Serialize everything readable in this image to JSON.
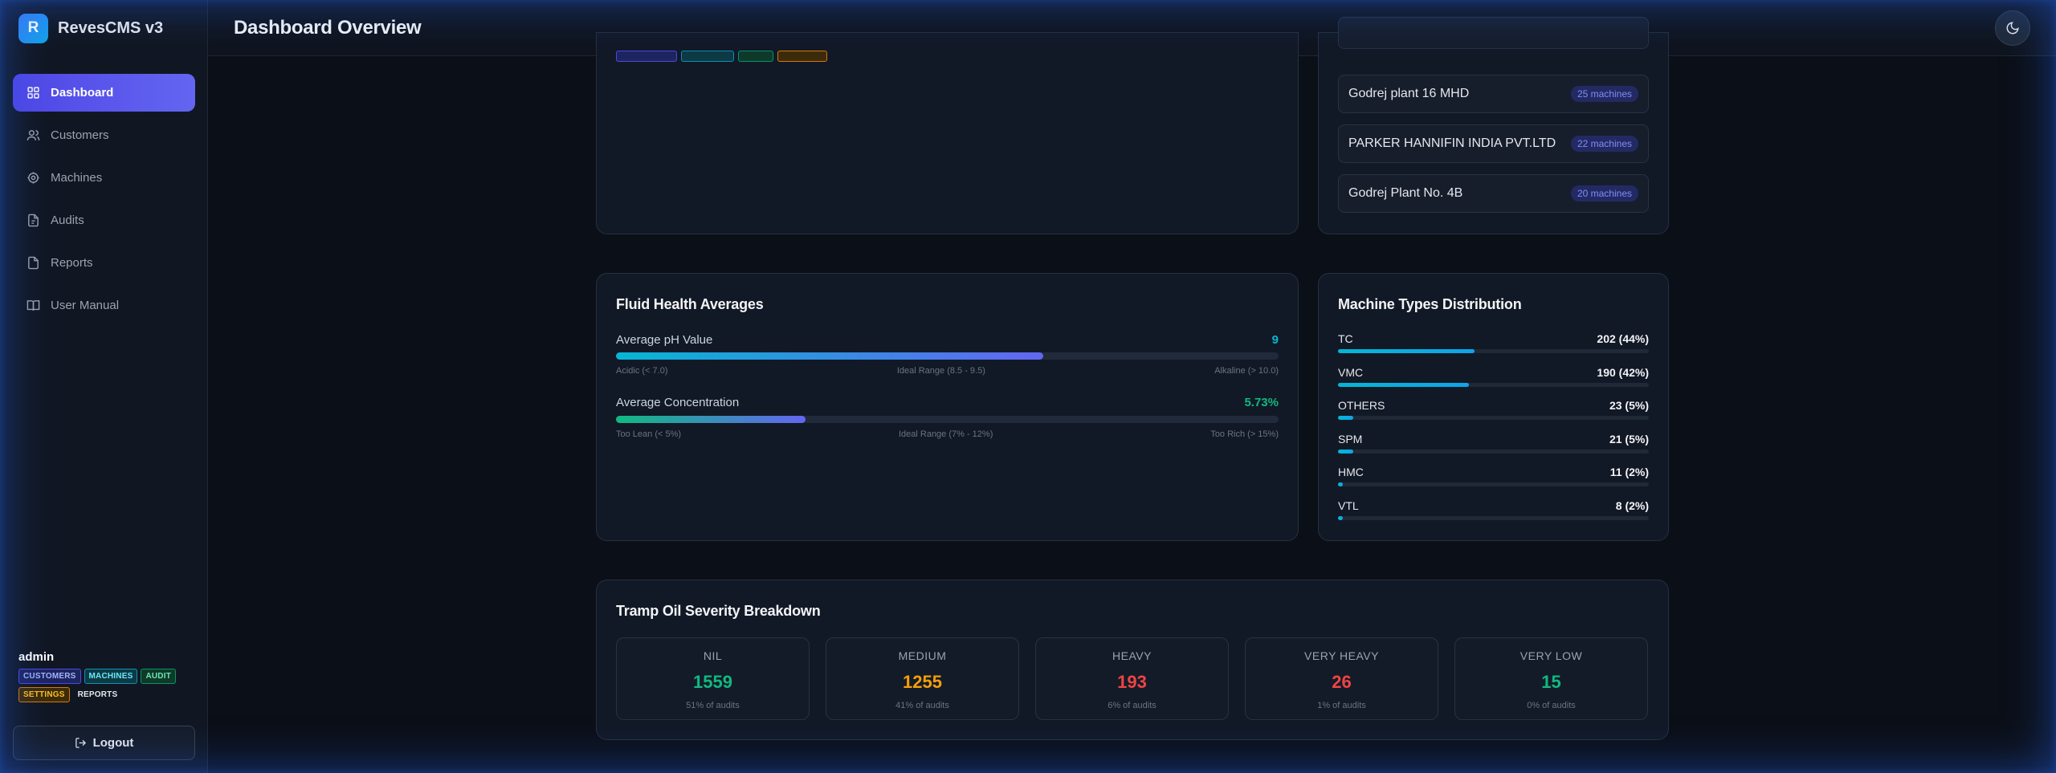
{
  "brand": {
    "logo_letter": "R",
    "name": "RevesCMS v3"
  },
  "header": {
    "title": "Dashboard Overview"
  },
  "sidebar": {
    "items": [
      {
        "label": "Dashboard",
        "icon": "grid-icon",
        "active": true
      },
      {
        "label": "Customers",
        "icon": "users-icon"
      },
      {
        "label": "Machines",
        "icon": "gear-icon"
      },
      {
        "label": "Audits",
        "icon": "file-icon"
      },
      {
        "label": "Reports",
        "icon": "document-icon"
      },
      {
        "label": "User Manual",
        "icon": "book-icon"
      }
    ],
    "user": {
      "name": "admin",
      "roles": [
        "CUSTOMERS",
        "MACHINES",
        "AUDIT",
        "SETTINGS",
        "REPORTS"
      ]
    },
    "logout_label": "Logout"
  },
  "top_customers": {
    "rows": [
      {
        "name": "Godrej plant 16 MHD",
        "machines": "25 machines"
      },
      {
        "name": "PARKER HANNIFIN INDIA PVT.LTD",
        "machines": "22 machines"
      },
      {
        "name": "Godrej Plant No. 4B",
        "machines": "20 machines"
      }
    ]
  },
  "fluid_health": {
    "title": "Fluid Health Averages",
    "ph": {
      "label": "Average pH Value",
      "value": "9",
      "fill_fraction": 0.645,
      "ranges": [
        "Acidic (< 7.0)",
        "Ideal Range (8.5 - 9.5)",
        "Alkaline (> 10.0)"
      ]
    },
    "concentration": {
      "label": "Average Concentration",
      "value": "5.73%",
      "fill_fraction": 0.286,
      "ranges": [
        "Too Lean (< 5%)",
        "Ideal Range (7% - 12%)",
        "Too Rich (> 15%)"
      ]
    }
  },
  "machine_types": {
    "title": "Machine Types Distribution",
    "items": [
      {
        "name": "TC",
        "value": "202 (44%)",
        "fraction": 0.44
      },
      {
        "name": "VMC",
        "value": "190 (42%)",
        "fraction": 0.42
      },
      {
        "name": "OTHERS",
        "value": "23 (5%)",
        "fraction": 0.05
      },
      {
        "name": "SPM",
        "value": "21 (5%)",
        "fraction": 0.05
      },
      {
        "name": "HMC",
        "value": "11 (2%)",
        "fraction": 0.015
      },
      {
        "name": "VTL",
        "value": "8 (2%)",
        "fraction": 0.015
      }
    ]
  },
  "tramp_oil": {
    "title": "Tramp Oil Severity Breakdown",
    "items": [
      {
        "label": "NIL",
        "value": "1559",
        "sub": "51% of audits",
        "color": "#10b981"
      },
      {
        "label": "MEDIUM",
        "value": "1255",
        "sub": "41% of audits",
        "color": "#f59e0b"
      },
      {
        "label": "HEAVY",
        "value": "193",
        "sub": "6% of audits",
        "color": "#ef4444"
      },
      {
        "label": "VERY HEAVY",
        "value": "26",
        "sub": "1% of audits",
        "color": "#ef4444"
      },
      {
        "label": "VERY LOW",
        "value": "15",
        "sub": "0% of audits",
        "color": "#10b981"
      }
    ]
  }
}
